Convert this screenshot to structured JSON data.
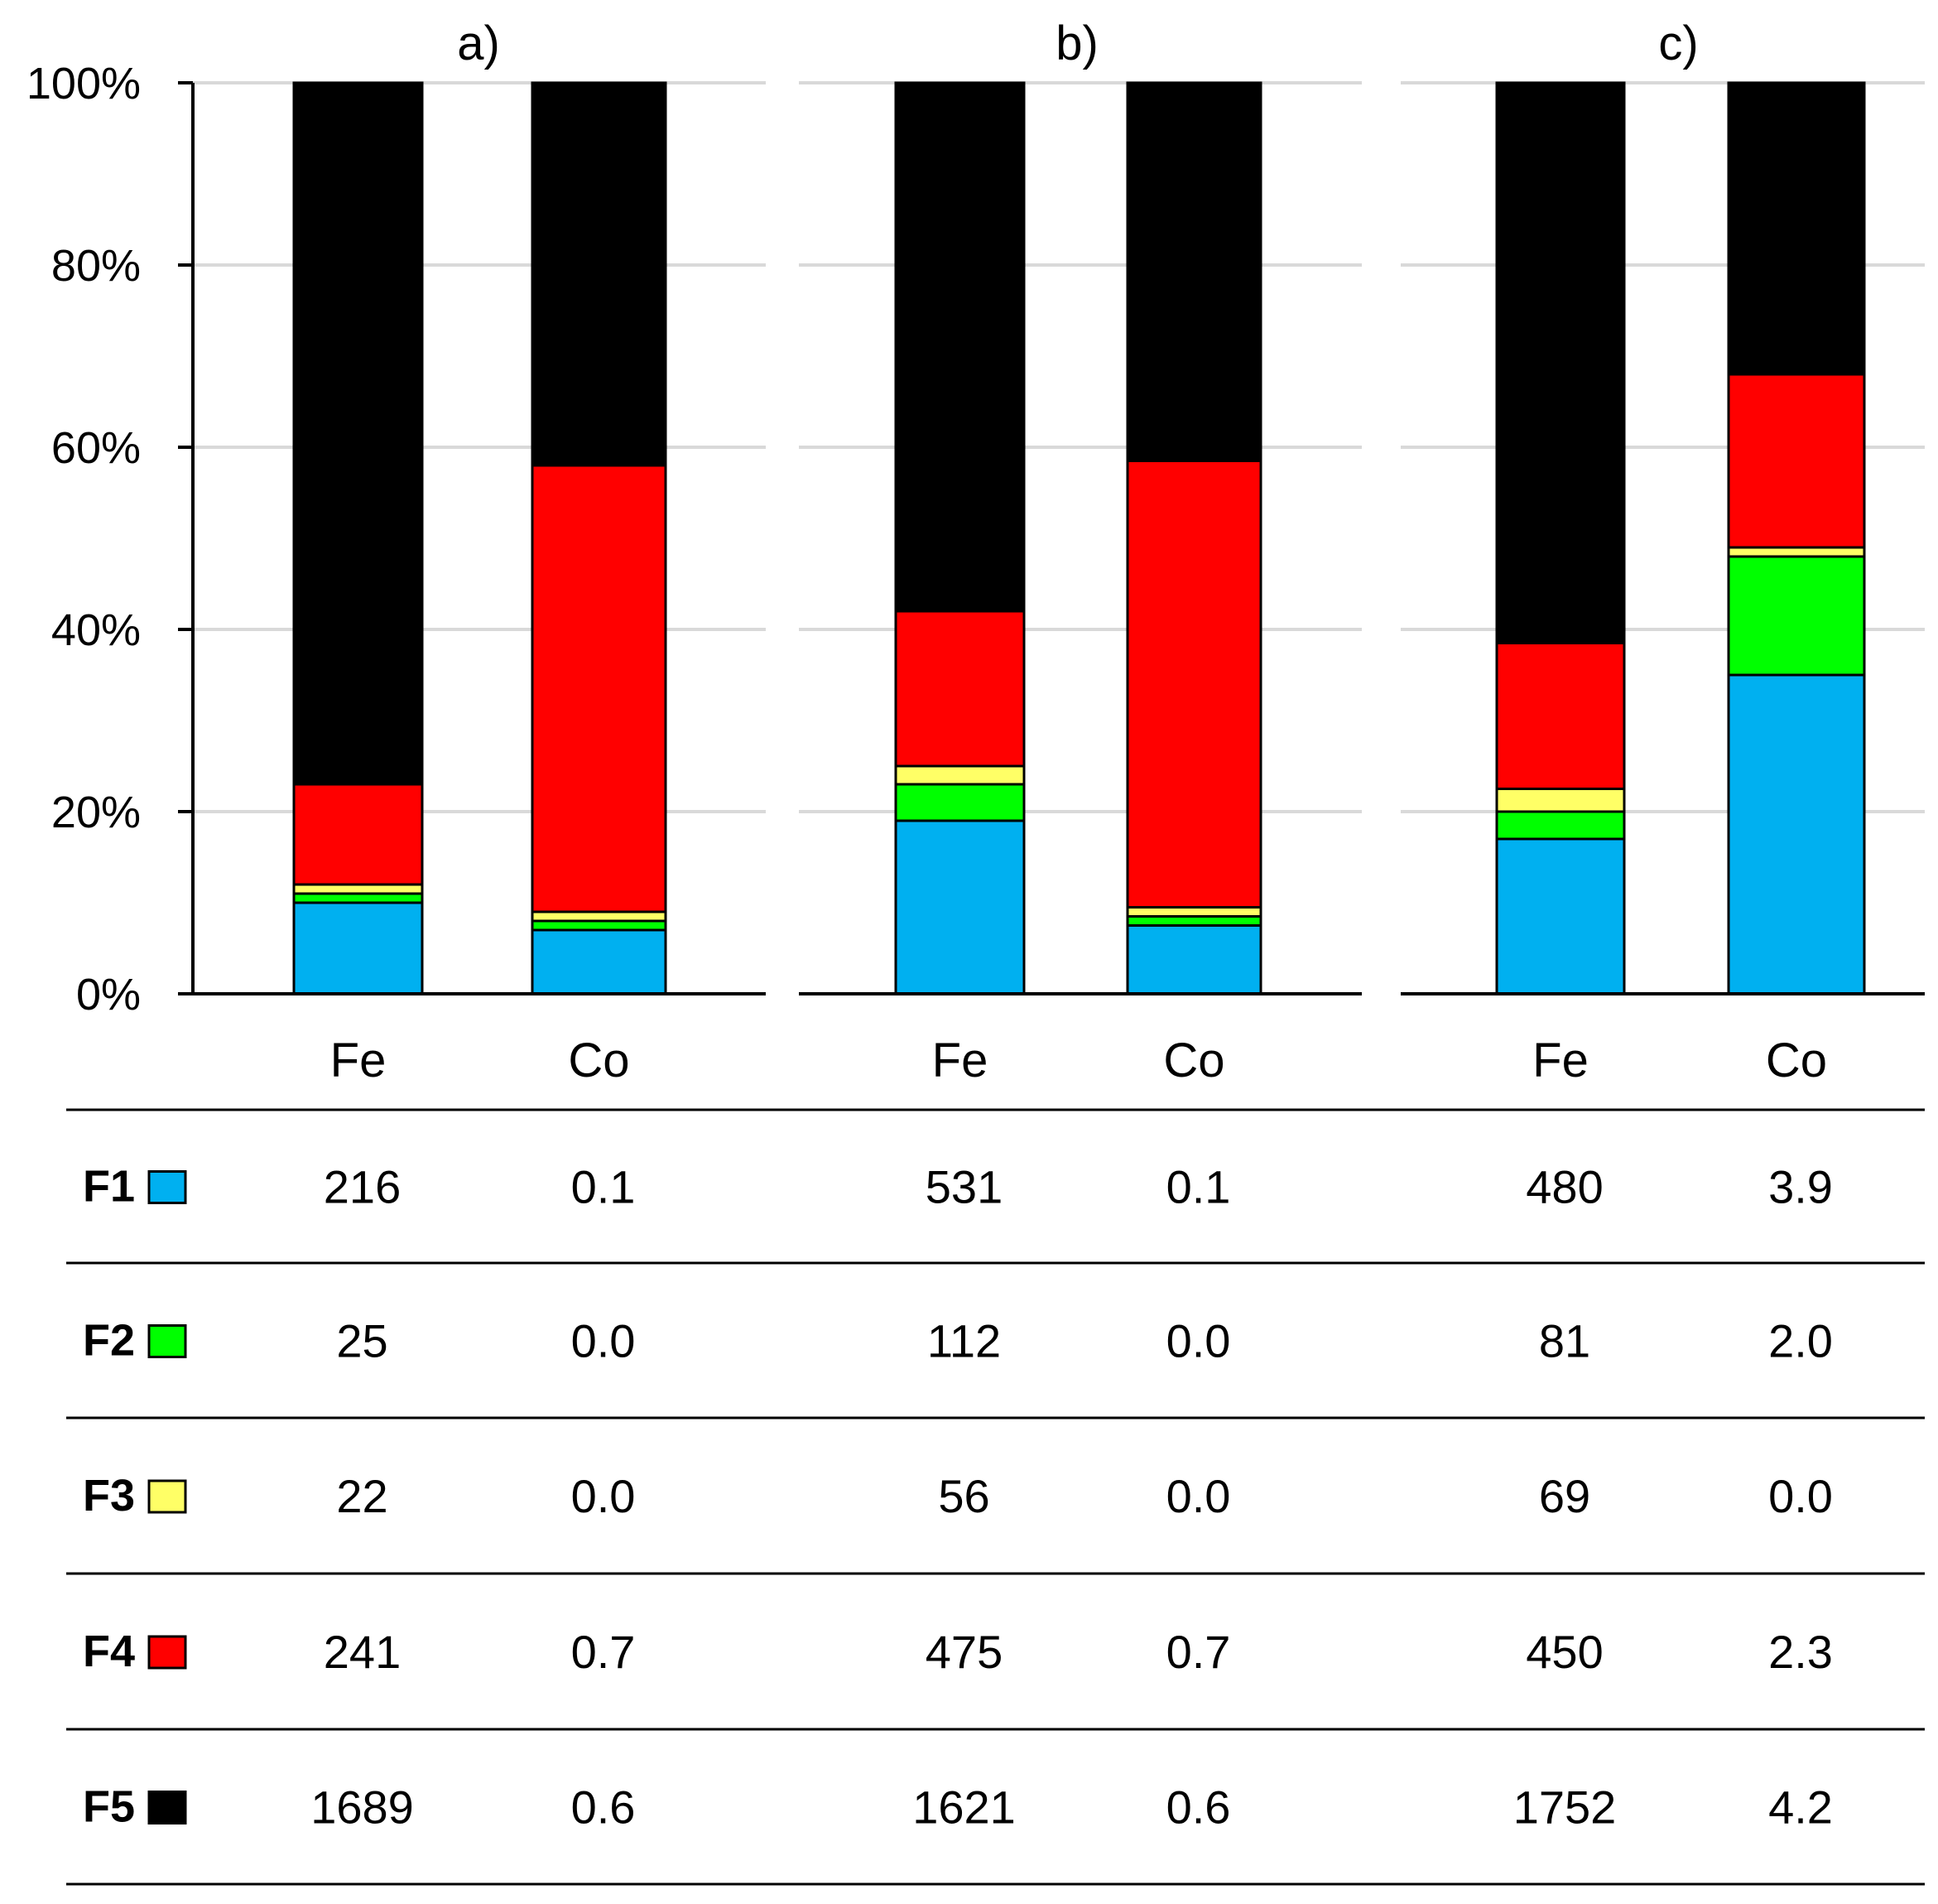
{
  "chart_data": {
    "type": "bar",
    "stacked": true,
    "normalized_percent": true,
    "yticks": [
      "0%",
      "20%",
      "40%",
      "60%",
      "80%",
      "100%"
    ],
    "ylim": [
      0,
      100
    ],
    "grid": true,
    "fractions": [
      {
        "name": "F1",
        "color": "#00b0f0"
      },
      {
        "name": "F2",
        "color": "#00ff00"
      },
      {
        "name": "F3",
        "color": "#ffff66"
      },
      {
        "name": "F4",
        "color": "#ff0000"
      },
      {
        "name": "F5",
        "color": "#000000"
      }
    ],
    "panels": [
      {
        "title": "a)",
        "bars": [
          {
            "label": "Fe",
            "percent": [
              10,
              1,
              1,
              11,
              77
            ]
          },
          {
            "label": "Co",
            "percent": [
              7,
              1,
              1,
              49,
              42
            ]
          }
        ]
      },
      {
        "title": "b)",
        "bars": [
          {
            "label": "Fe",
            "percent": [
              19,
              4,
              2,
              17,
              58
            ]
          },
          {
            "label": "Co",
            "percent": [
              7.5,
              1,
              1,
              49,
              41.5
            ]
          }
        ]
      },
      {
        "title": "c)",
        "bars": [
          {
            "label": "Fe",
            "percent": [
              17,
              3,
              2.5,
              16,
              61.5
            ]
          },
          {
            "label": "Co",
            "percent": [
              35,
              13,
              1,
              19,
              32
            ]
          }
        ]
      }
    ],
    "table": {
      "rows": [
        {
          "label": "F1",
          "values": [
            "216",
            "0.1",
            "531",
            "0.1",
            "480",
            "3.9"
          ]
        },
        {
          "label": "F2",
          "values": [
            "25",
            "0.0",
            "112",
            "0.0",
            "81",
            "2.0"
          ]
        },
        {
          "label": "F3",
          "values": [
            "22",
            "0.0",
            "56",
            "0.0",
            "69",
            "0.0"
          ]
        },
        {
          "label": "F4",
          "values": [
            "241",
            "0.7",
            "475",
            "0.7",
            "450",
            "2.3"
          ]
        },
        {
          "label": "F5",
          "values": [
            "1689",
            "0.6",
            "1621",
            "0.6",
            "1752",
            "4.2"
          ]
        }
      ]
    }
  }
}
